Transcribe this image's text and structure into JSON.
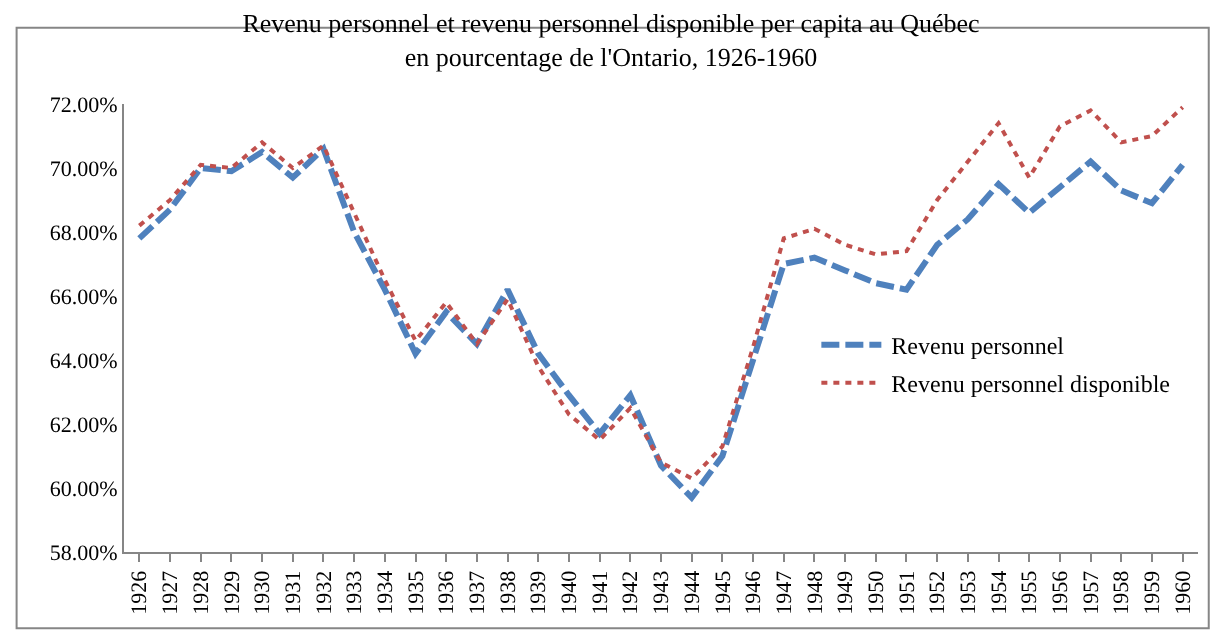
{
  "chart_data": {
    "type": "line",
    "title": "Revenu personnel et revenu personnel disponible per capita au Québec\nen pourcentage de l'Ontario, 1926-1960",
    "categories": [
      "1926",
      "1927",
      "1928",
      "1929",
      "1930",
      "1931",
      "1932",
      "1933",
      "1934",
      "1935",
      "1936",
      "1937",
      "1938",
      "1939",
      "1940",
      "1941",
      "1942",
      "1943",
      "1944",
      "1945",
      "1946",
      "1947",
      "1948",
      "1949",
      "1950",
      "1951",
      "1952",
      "1953",
      "1954",
      "1955",
      "1956",
      "1957",
      "1958",
      "1959",
      "1960"
    ],
    "series": [
      {
        "name": "Revenu personnel",
        "color": "#4f81bd",
        "line_style": "dashed",
        "values": [
          67.8,
          68.7,
          70.0,
          69.9,
          70.5,
          69.7,
          70.6,
          68.0,
          66.2,
          64.2,
          65.5,
          64.5,
          66.2,
          64.2,
          62.9,
          61.7,
          62.9,
          60.7,
          59.7,
          61.0,
          64.0,
          67.0,
          67.2,
          66.8,
          66.4,
          66.2,
          67.6,
          68.4,
          69.5,
          68.6,
          69.4,
          70.2,
          69.3,
          68.9,
          70.1
        ]
      },
      {
        "name": "Revenu personnel disponible",
        "color": "#c0504d",
        "line_style": "dotted",
        "values": [
          68.2,
          69.0,
          70.1,
          70.0,
          70.8,
          70.0,
          70.7,
          68.6,
          66.5,
          64.6,
          65.8,
          64.5,
          65.9,
          63.8,
          62.3,
          61.5,
          62.5,
          60.8,
          60.3,
          61.3,
          64.4,
          67.8,
          68.1,
          67.6,
          67.3,
          67.4,
          69.0,
          70.2,
          71.4,
          69.7,
          71.3,
          71.8,
          70.8,
          71.0,
          71.9
        ]
      }
    ],
    "ylim": [
      58,
      72
    ],
    "yticks": [
      {
        "value": 58,
        "label": "58.00%"
      },
      {
        "value": 60,
        "label": "60.00%"
      },
      {
        "value": 62,
        "label": "62.00%"
      },
      {
        "value": 64,
        "label": "64.00%"
      },
      {
        "value": 66,
        "label": "66.00%"
      },
      {
        "value": 68,
        "label": "68.00%"
      },
      {
        "value": 70,
        "label": "70.00%"
      },
      {
        "value": 72,
        "label": "72.00%"
      }
    ],
    "legend": "right",
    "marker": "none"
  }
}
